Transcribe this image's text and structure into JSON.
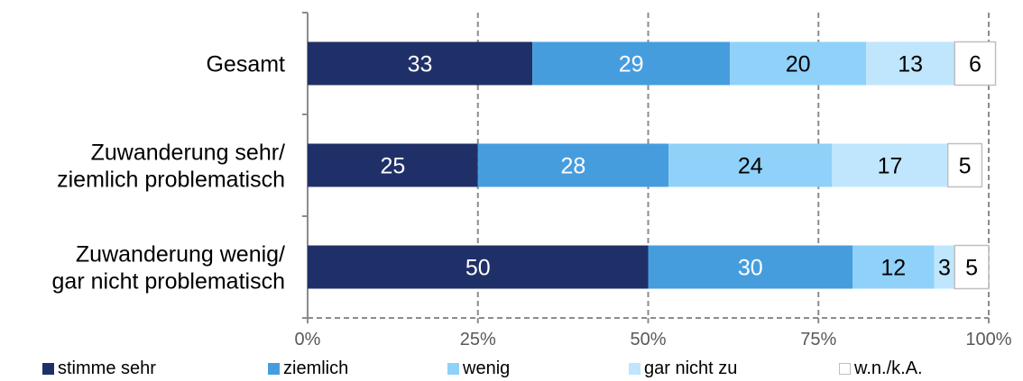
{
  "chart_data": {
    "type": "bar",
    "orientation": "horizontal",
    "stacked": true,
    "categories": [
      [
        "Gesamt"
      ],
      [
        "Zuwanderung sehr/",
        "ziemlich problematisch"
      ],
      [
        "Zuwanderung wenig/",
        "gar nicht problematisch"
      ]
    ],
    "series": [
      {
        "name": "stimme sehr",
        "values": [
          33,
          25,
          50
        ],
        "color": "#1F3068",
        "label_color": "#ffffff"
      },
      {
        "name": "ziemlich",
        "values": [
          29,
          28,
          30
        ],
        "color": "#469DDE",
        "label_color": "#ffffff"
      },
      {
        "name": "wenig",
        "values": [
          20,
          24,
          12
        ],
        "color": "#8FD1F8",
        "label_color": "#000000"
      },
      {
        "name": "gar nicht zu",
        "values": [
          13,
          17,
          3
        ],
        "color": "#BFE6FC",
        "label_color": "#000000"
      },
      {
        "name": "w.n./k.A.",
        "values": [
          6,
          5,
          5
        ],
        "color": "#FFFFFF",
        "label_color": "#000000",
        "border": "#BFBFBF"
      }
    ],
    "xlim": [
      0,
      100
    ],
    "xticks": [
      "0%",
      "25%",
      "50%",
      "75%",
      "100%"
    ],
    "grid": "vertical dashed",
    "legend_position": "bottom",
    "title": "",
    "xlabel": "",
    "ylabel": ""
  }
}
